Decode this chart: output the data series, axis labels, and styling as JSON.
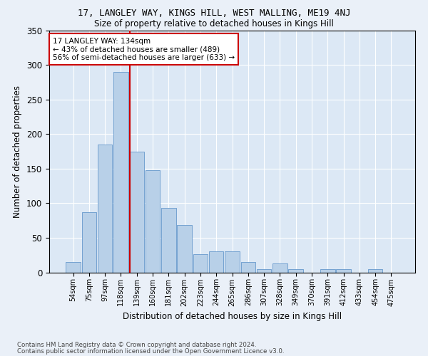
{
  "title1": "17, LANGLEY WAY, KINGS HILL, WEST MALLING, ME19 4NJ",
  "title2": "Size of property relative to detached houses in Kings Hill",
  "xlabel": "Distribution of detached houses by size in Kings Hill",
  "ylabel": "Number of detached properties",
  "categories": [
    "54sqm",
    "75sqm",
    "97sqm",
    "118sqm",
    "139sqm",
    "160sqm",
    "181sqm",
    "202sqm",
    "223sqm",
    "244sqm",
    "265sqm",
    "286sqm",
    "307sqm",
    "328sqm",
    "349sqm",
    "370sqm",
    "391sqm",
    "412sqm",
    "433sqm",
    "454sqm",
    "475sqm"
  ],
  "values": [
    15,
    87,
    185,
    290,
    175,
    148,
    93,
    68,
    26,
    30,
    30,
    15,
    5,
    13,
    5,
    0,
    5,
    5,
    0,
    5,
    0
  ],
  "bar_color": "#b8d0e8",
  "bar_edge_color": "#6699cc",
  "vline_x": 3.57,
  "vline_color": "#cc0000",
  "annotation_title": "17 LANGLEY WAY: 134sqm",
  "annotation_line1": "← 43% of detached houses are smaller (489)",
  "annotation_line2": "56% of semi-detached houses are larger (633) →",
  "annotation_box_facecolor": "#ffffff",
  "annotation_box_edgecolor": "#cc0000",
  "footer1": "Contains HM Land Registry data © Crown copyright and database right 2024.",
  "footer2": "Contains public sector information licensed under the Open Government Licence v3.0.",
  "ylim": [
    0,
    350
  ],
  "yticks": [
    0,
    50,
    100,
    150,
    200,
    250,
    300,
    350
  ],
  "bg_color": "#eaf0f8",
  "plot_bg_color": "#dce8f5"
}
